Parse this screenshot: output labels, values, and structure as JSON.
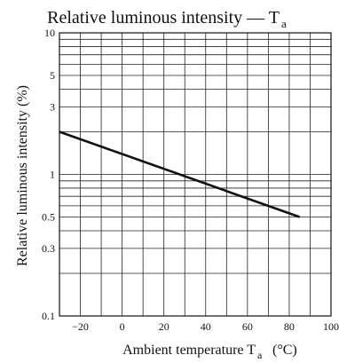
{
  "chart_data": {
    "type": "line",
    "title": {
      "main": "Relative luminous intensity — T",
      "main_subscript": "a"
    },
    "xlabel": {
      "text": "Ambient temperature T",
      "subscript": "a",
      "unit": "(°C)"
    },
    "ylabel": "Relative luminous intensity (%)",
    "xlim": [
      -30,
      100
    ],
    "ylim": [
      0.1,
      10
    ],
    "y_scale": "log",
    "grid": true,
    "x_ticks": [
      -20,
      0,
      20,
      40,
      60,
      80,
      100
    ],
    "x_tick_labels": [
      "−20",
      "0",
      "20",
      "40",
      "60",
      "80",
      "100"
    ],
    "y_tick_labels": [
      {
        "value": 10,
        "label": "10"
      },
      {
        "value": 5,
        "label": "5"
      },
      {
        "value": 3,
        "label": "3"
      },
      {
        "value": 1,
        "label": "1"
      },
      {
        "value": 0.5,
        "label": "0.5"
      },
      {
        "value": 0.3,
        "label": "0.3"
      },
      {
        "value": 0.1,
        "label": "0.1"
      }
    ],
    "series": [
      {
        "x": [
          -30,
          85
        ],
        "y": [
          2.0,
          0.5
        ],
        "color": "#111111"
      }
    ]
  }
}
